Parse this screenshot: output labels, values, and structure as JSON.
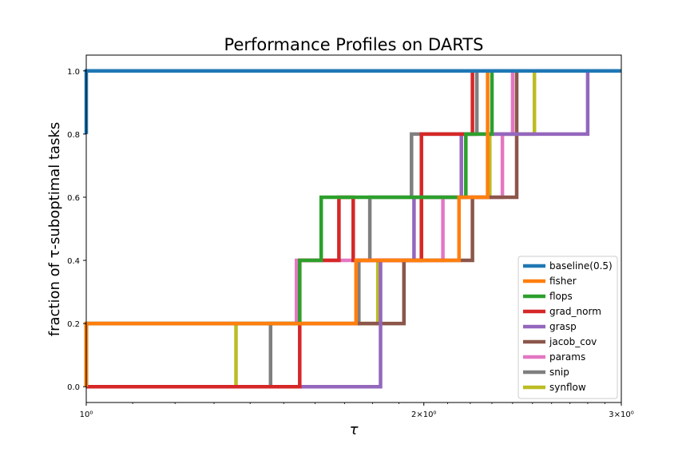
{
  "chart_data": {
    "type": "line",
    "title": "Performance Profiles on DARTS",
    "xlabel": "τ",
    "ylabel": "fraction of τ-suboptimal tasks",
    "x_scale": "log",
    "xlim": [
      1.0,
      3.0
    ],
    "ylim": [
      -0.05,
      1.05
    ],
    "grid": false,
    "legend_position": "lower right",
    "x_ticks": [
      {
        "value": 1,
        "label": "10⁰"
      },
      {
        "value": 2,
        "label": "2×10⁰"
      },
      {
        "value": 3,
        "label": "3×10⁰"
      }
    ],
    "y_ticks": [
      {
        "value": 0.0,
        "label": "0.0"
      },
      {
        "value": 0.2,
        "label": "0.2"
      },
      {
        "value": 0.4,
        "label": "0.4"
      },
      {
        "value": 0.6,
        "label": "0.6"
      },
      {
        "value": 0.8,
        "label": "0.8"
      },
      {
        "value": 1.0,
        "label": "1.0"
      }
    ],
    "series": [
      {
        "name": "baseline(0.5)",
        "color": "#1f77b4",
        "x": [
          1.0,
          1.0,
          3.0
        ],
        "y": [
          0.8,
          1.0,
          1.0
        ]
      },
      {
        "name": "fisher",
        "color": "#ff7f0e",
        "x": [
          1.0,
          1.0,
          1.74,
          1.74,
          2.15,
          2.15,
          2.28,
          2.28,
          3.0
        ],
        "y": [
          0.0,
          0.2,
          0.2,
          0.4,
          0.4,
          0.6,
          0.6,
          1.0,
          1.0
        ]
      },
      {
        "name": "flops",
        "color": "#2ca02c",
        "x": [
          1.0,
          1.0,
          1.55,
          1.55,
          1.62,
          1.62,
          2.18,
          2.18,
          2.3,
          2.3,
          3.0
        ],
        "y": [
          0.0,
          0.2,
          0.2,
          0.4,
          0.4,
          0.6,
          0.6,
          0.8,
          0.8,
          1.0,
          1.0
        ]
      },
      {
        "name": "grad_norm",
        "color": "#d62728",
        "x": [
          1.0,
          1.55,
          1.55,
          1.68,
          1.68,
          1.73,
          1.73,
          1.99,
          1.99,
          2.21,
          2.21,
          3.0
        ],
        "y": [
          0.0,
          0.0,
          0.4,
          0.4,
          0.6,
          0.6,
          0.4,
          0.4,
          0.8,
          0.8,
          1.0,
          1.0
        ]
      },
      {
        "name": "grasp",
        "color": "#9467bd",
        "x": [
          1.0,
          1.46,
          1.46,
          1.83,
          1.83,
          1.96,
          1.96,
          2.16,
          2.16,
          2.8,
          2.8,
          3.0
        ],
        "y": [
          0.0,
          0.0,
          0.0,
          0.0,
          0.4,
          0.4,
          0.6,
          0.6,
          0.8,
          0.8,
          1.0,
          1.0
        ]
      },
      {
        "name": "jacob_cov",
        "color": "#8c564b",
        "x": [
          1.0,
          1.0,
          1.25,
          1.25,
          1.92,
          1.92,
          2.21,
          2.21,
          2.42,
          2.42,
          3.0
        ],
        "y": [
          0.0,
          0.2,
          0.2,
          0.2,
          0.2,
          0.4,
          0.4,
          0.6,
          0.6,
          1.0,
          1.0
        ]
      },
      {
        "name": "params",
        "color": "#e377c2",
        "x": [
          1.0,
          1.0,
          1.54,
          1.54,
          2.08,
          2.08,
          2.35,
          2.35,
          2.4,
          2.4,
          3.0
        ],
        "y": [
          0.2,
          0.2,
          0.2,
          0.4,
          0.4,
          0.6,
          0.6,
          0.8,
          0.8,
          1.0,
          1.0
        ]
      },
      {
        "name": "snip",
        "color": "#7f7f7f",
        "x": [
          1.0,
          1.36,
          1.36,
          1.46,
          1.46,
          1.75,
          1.75,
          1.79,
          1.79,
          1.95,
          1.95,
          2.23,
          2.23,
          3.0
        ],
        "y": [
          0.0,
          0.0,
          0.0,
          0.0,
          0.2,
          0.2,
          0.4,
          0.4,
          0.6,
          0.6,
          0.8,
          0.8,
          1.0,
          1.0
        ]
      },
      {
        "name": "synflow",
        "color": "#bcbd22",
        "x": [
          1.0,
          1.0,
          1.36,
          1.36,
          1.82,
          1.82,
          1.99,
          1.99,
          2.29,
          2.29,
          2.51,
          2.51,
          3.0
        ],
        "y": [
          0.0,
          0.0,
          0.0,
          0.2,
          0.2,
          0.4,
          0.4,
          0.6,
          0.6,
          0.8,
          0.8,
          1.0,
          1.0
        ]
      }
    ]
  }
}
